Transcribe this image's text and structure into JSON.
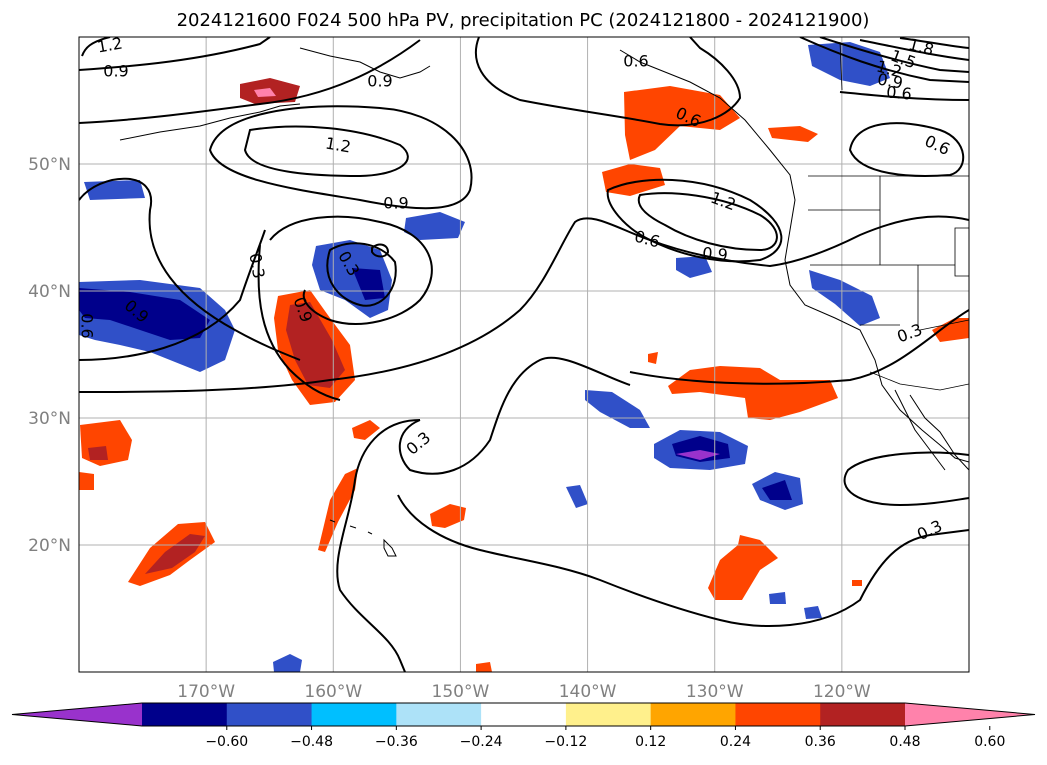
{
  "title": "2024121600 F024 500 hPa PV, precipitation PC (2024121800 - 2024121900)",
  "map": {
    "lon_range": [
      180,
      -110
    ],
    "lat_range": [
      10,
      60
    ],
    "lat_ticks": [
      {
        "value": 50,
        "label": "50°N"
      },
      {
        "value": 40,
        "label": "40°N"
      },
      {
        "value": 30,
        "label": "30°N"
      },
      {
        "value": 20,
        "label": "20°N"
      }
    ],
    "lon_ticks": [
      {
        "value": -170,
        "label": "170°W"
      },
      {
        "value": -160,
        "label": "160°W"
      },
      {
        "value": -150,
        "label": "150°W"
      },
      {
        "value": -140,
        "label": "140°W"
      },
      {
        "value": -130,
        "label": "130°W"
      },
      {
        "value": -120,
        "label": "120°W"
      }
    ],
    "grid": true,
    "contour_labels": [
      "1.2",
      "0.9",
      "1.2",
      "0.9",
      "0.3",
      "0.6",
      "0.3",
      "0.9",
      "0.6",
      "0.9",
      "1.2",
      "0.6",
      "0.9",
      "1.8",
      "1.5",
      "1.2",
      "0.9",
      "0.6",
      "0.6",
      "0.3",
      "0.3",
      "0.3",
      "0.6",
      "0.9"
    ]
  },
  "colorbar": {
    "bounds": [
      "−0.60",
      "−0.48",
      "−0.36",
      "−0.24",
      "−0.12",
      "0.12",
      "0.24",
      "0.36",
      "0.48",
      "0.60"
    ],
    "colors": [
      "#9932cc",
      "#00008b",
      "#3050c8",
      "#00bfff",
      "#ade2f8",
      "#ffffff",
      "#fff08c",
      "#ffa500",
      "#ff4500",
      "#b22222",
      "#ff82ab"
    ]
  }
}
